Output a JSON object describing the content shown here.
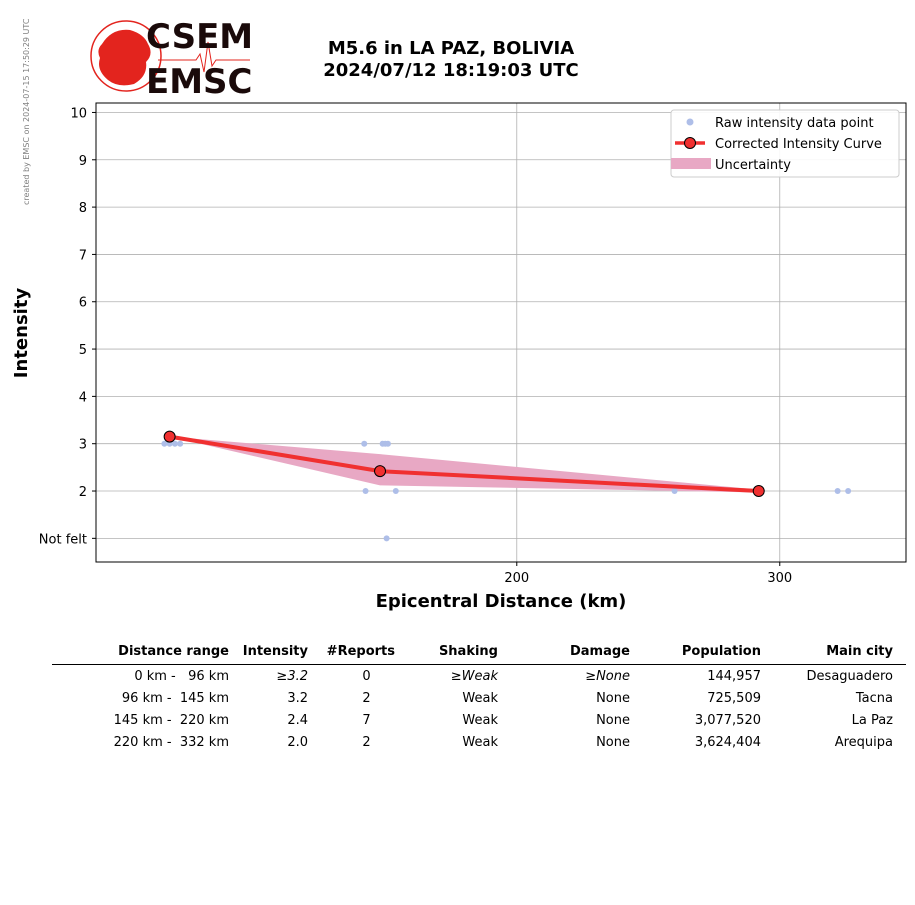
{
  "credit": "created by EMSC on 2024-07-15 17:50:29 UTC",
  "logo": {
    "top": "CSEM",
    "bottom": "EMSC",
    "color": "#e3241e"
  },
  "title": {
    "line1": "M5.6 in LA PAZ, BOLIVIA",
    "line2": "2024/07/12 18:19:03 UTC"
  },
  "chart_data": {
    "type": "scatter",
    "xlabel": "Epicentral Distance (km)",
    "ylabel": "Intensity",
    "xlim": [
      40,
      348
    ],
    "ylim": [
      0.5,
      10.2
    ],
    "x_ticks": [
      200,
      300
    ],
    "y_ticks": [
      1,
      2,
      3,
      4,
      5,
      6,
      7,
      8,
      9,
      10
    ],
    "y_tick_labels": [
      "Not felt",
      "2",
      "3",
      "4",
      "5",
      "6",
      "7",
      "8",
      "9",
      "10"
    ],
    "grid": true,
    "legend_position": "top-right",
    "series": [
      {
        "name": "Raw intensity data point",
        "kind": "points",
        "color": "#aebee8",
        "points": [
          [
            66,
            3
          ],
          [
            68,
            3
          ],
          [
            70,
            3
          ],
          [
            72,
            3
          ],
          [
            142,
            3
          ],
          [
            149,
            3
          ],
          [
            150,
            3
          ],
          [
            151,
            3
          ],
          [
            142.5,
            2
          ],
          [
            154,
            2
          ],
          [
            150.5,
            1
          ],
          [
            260,
            2
          ],
          [
            322,
            2
          ],
          [
            326,
            2
          ]
        ]
      },
      {
        "name": "Corrected Intensity Curve",
        "kind": "line",
        "color": "#f03030",
        "points": [
          [
            68,
            3.15
          ],
          [
            148,
            2.42
          ],
          [
            292,
            2.0
          ]
        ]
      },
      {
        "name": "Uncertainty",
        "kind": "band",
        "color": "#e8a8c4",
        "upper": [
          [
            68,
            3.15
          ],
          [
            148,
            2.78
          ],
          [
            292,
            2.03
          ]
        ],
        "lower": [
          [
            68,
            3.15
          ],
          [
            148,
            2.12
          ],
          [
            292,
            1.97
          ]
        ]
      }
    ]
  },
  "table": {
    "headers": [
      "Distance range",
      "Intensity",
      "#Reports",
      "Shaking",
      "Damage",
      "Population",
      "Main city"
    ],
    "rows": [
      {
        "range": "0 km -   96 km",
        "intensity": "≥3.2",
        "reports": "0",
        "shaking": "≥Weak",
        "damage": "≥None",
        "population": "144,957",
        "city": "Desaguadero"
      },
      {
        "range": "96 km -  145 km",
        "intensity": "3.2",
        "reports": "2",
        "shaking": "Weak",
        "damage": "None",
        "population": "725,509",
        "city": "Tacna"
      },
      {
        "range": "145 km -  220 km",
        "intensity": "2.4",
        "reports": "7",
        "shaking": "Weak",
        "damage": "None",
        "population": "3,077,520",
        "city": "La Paz"
      },
      {
        "range": "220 km -  332 km",
        "intensity": "2.0",
        "reports": "2",
        "shaking": "Weak",
        "damage": "None",
        "population": "3,624,404",
        "city": "Arequipa"
      }
    ]
  }
}
